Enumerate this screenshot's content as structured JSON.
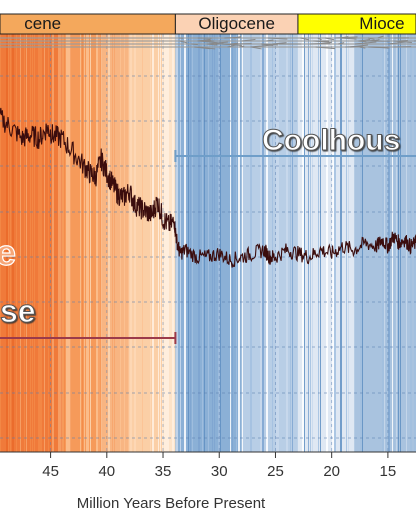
{
  "chart_data": {
    "type": "line",
    "title": "",
    "xlabel": "Million Years Before Present",
    "ylabel": "",
    "xlim": [
      49.5,
      12.5
    ],
    "x_ticks": [
      45,
      40,
      35,
      30,
      25,
      20,
      15
    ],
    "x_tick_labels": [
      "45",
      "40",
      "35",
      "30",
      "25",
      "20",
      "15"
    ],
    "grid": "dashed",
    "epochs": [
      {
        "name": "Eocene",
        "label": "cene",
        "start": 49.5,
        "end": 33.9,
        "color": "#f4a85c"
      },
      {
        "name": "Oligocene",
        "label": "Oligocene",
        "start": 33.9,
        "end": 23.0,
        "color": "#fbd2b4"
      },
      {
        "name": "Miocene",
        "label": "Mioce",
        "start": 23.0,
        "end": 12.5,
        "color": "#ffff00"
      }
    ],
    "climate_states": [
      {
        "label": "Coolhous",
        "start": 33.9,
        "end": 12.5,
        "color": "#6f9ec9"
      },
      {
        "label": "se",
        "start": 49.5,
        "end": 33.9,
        "color": "#9b3a4a"
      },
      {
        "label": "e",
        "start": 49.5,
        "end": 33.9,
        "color": "#f6a678"
      }
    ],
    "series": [
      {
        "color": "#3b0d0d",
        "x": [
          49.5,
          48.5,
          47.5,
          46.8,
          46.0,
          45.3,
          44.8,
          44.0,
          43.0,
          42.0,
          41.5,
          41.0,
          40.5,
          40.0,
          39.5,
          39.0,
          38.5,
          38.0,
          37.5,
          37.0,
          36.5,
          36.0,
          35.5,
          35.0,
          34.5,
          34.0,
          33.8,
          33.5,
          33.0,
          32.0,
          31.0,
          30.0,
          29.0,
          28.0,
          27.0,
          26.0,
          25.5,
          25.0,
          24.0,
          23.0,
          22.0,
          21.0,
          20.0,
          19.0,
          18.0,
          17.0,
          16.0,
          15.5,
          15.0,
          14.5,
          14.0,
          13.5,
          13.0,
          12.5
        ],
        "y": [
          2.3,
          2.15,
          2.0,
          2.05,
          2.0,
          2.15,
          2.05,
          2.0,
          1.8,
          1.6,
          1.5,
          1.45,
          1.7,
          1.5,
          1.35,
          1.2,
          1.15,
          1.25,
          1.05,
          1.0,
          0.95,
          0.9,
          1.1,
          0.85,
          0.75,
          0.8,
          0.55,
          0.35,
          0.4,
          0.3,
          0.3,
          0.35,
          0.25,
          0.3,
          0.35,
          0.4,
          0.3,
          0.3,
          0.4,
          0.35,
          0.3,
          0.4,
          0.35,
          0.45,
          0.4,
          0.5,
          0.45,
          0.55,
          0.45,
          0.6,
          0.5,
          0.55,
          0.45,
          0.5
        ],
        "ylim": [
          -2.5,
          3.5
        ]
      }
    ],
    "background_stripes": [
      {
        "start": 49.5,
        "end": 44.0,
        "color": "#f07a3a"
      },
      {
        "start": 44.0,
        "end": 40.5,
        "color": "#f69a5a"
      },
      {
        "start": 40.5,
        "end": 38.0,
        "color": "#f8b582"
      },
      {
        "start": 38.0,
        "end": 35.0,
        "color": "#fbcfa6"
      },
      {
        "start": 35.0,
        "end": 33.9,
        "color": "#fde3c8"
      },
      {
        "start": 33.9,
        "end": 28.0,
        "color": "#8bb0d6"
      },
      {
        "start": 28.0,
        "end": 23.0,
        "color": "#b8cee6"
      },
      {
        "start": 23.0,
        "end": 18.0,
        "color": "#dfe8f3"
      },
      {
        "start": 18.0,
        "end": 12.5,
        "color": "#a9c3df"
      }
    ]
  }
}
